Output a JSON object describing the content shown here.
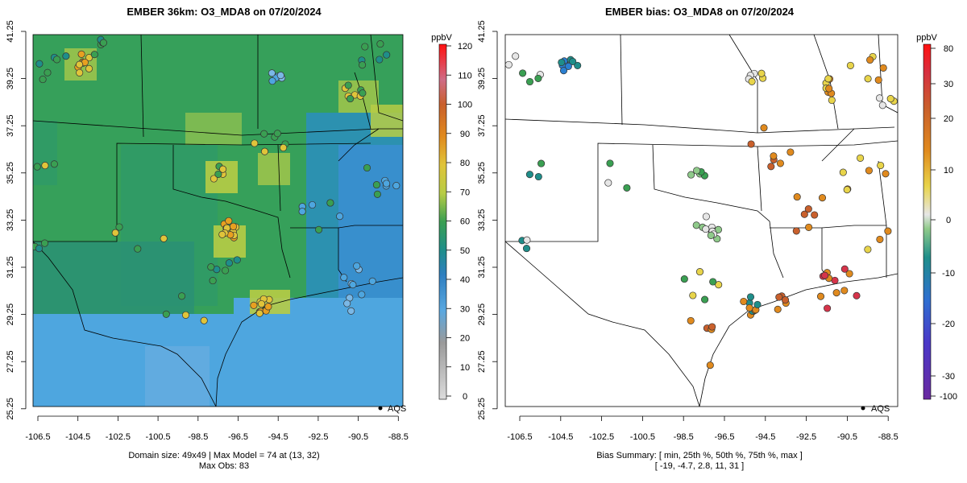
{
  "left_panel": {
    "title": "EMBER 36km: O3_MDA8 on 07/20/2024",
    "colorbar_unit": "ppbV",
    "colorbar_ticks": [
      "0",
      "10",
      "20",
      "30",
      "40",
      "50",
      "60",
      "70",
      "80",
      "90",
      "100",
      "110",
      "120"
    ],
    "legend_label": "AQS",
    "caption_line1": "Domain size: 49x49 | Max Model = 74 at (13, 32)",
    "caption_line2": "Max Obs: 83",
    "colors": {
      "low": "#cfcfcf",
      "blue": "#4ea6df",
      "teal": "#1f8e8a",
      "green": "#3a9f52",
      "yellow": "#e0c43a",
      "orange": "#e08a1e"
    }
  },
  "right_panel": {
    "title": "EMBER bias: O3_MDA8 on 07/20/2024",
    "colorbar_unit": "ppbV",
    "colorbar_ticks": [
      "80",
      "30",
      "20",
      "10",
      "0",
      "-10",
      "-20",
      "-30",
      "-100"
    ],
    "legend_label": "AQS",
    "caption_line1": "Bias Summary: [ min, 25th %, 50th %, 75th %, max ]",
    "caption_line2": "[ -19,   -4.7,   2.8,   11,   31 ]",
    "colors": {
      "neg": "#2a7fd0",
      "zero": "#e6e6e6",
      "pos": "#d8a520",
      "hot": "#d6344a"
    }
  },
  "axes": {
    "x_ticks": [
      "-106.5",
      "-104.5",
      "-102.5",
      "-100.5",
      "-98.5",
      "-96.5",
      "-94.5",
      "-92.5",
      "-90.5",
      "-88.5"
    ],
    "y_ticks": [
      "41.25",
      "39.25",
      "37.25",
      "35.25",
      "33.25",
      "31.25",
      "29.25",
      "27.25",
      "25.25"
    ]
  }
}
